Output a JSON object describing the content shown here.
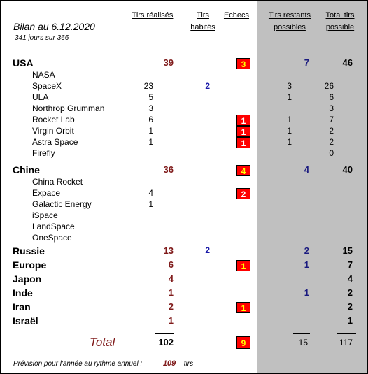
{
  "title": "Bilan au 6.12.2020",
  "subtitle": "341  jours sur 366",
  "headers": {
    "tirs_realises": "Tirs réalisés",
    "tirs_habites_1": "Tirs",
    "tirs_habites_2": "habités",
    "echecs": "Echecs",
    "tirs_restants_1": "Tirs restants",
    "tirs_restants_2": "possibles",
    "total_1": "Total tirs",
    "total_2": "possible"
  },
  "usa": {
    "name": "USA",
    "tirs": "39",
    "echecs": "3",
    "restants": "7",
    "total": "46",
    "companies": [
      {
        "name": "NASA",
        "tirs": "",
        "hab": "",
        "echecs": "",
        "rest": "",
        "total": ""
      },
      {
        "name": "SpaceX",
        "tirs": "23",
        "hab": "2",
        "echecs": "",
        "rest": "3",
        "total": "26"
      },
      {
        "name": "ULA",
        "tirs": "5",
        "hab": "",
        "echecs": "",
        "rest": "1",
        "total": "6"
      },
      {
        "name": "Northrop Grumman",
        "tirs": "3",
        "hab": "",
        "echecs": "",
        "rest": "",
        "total": "3"
      },
      {
        "name": "Rocket Lab",
        "tirs": "6",
        "hab": "",
        "echecs": "1",
        "rest": "1",
        "total": "7"
      },
      {
        "name": "Virgin Orbit",
        "tirs": "1",
        "hab": "",
        "echecs": "1",
        "rest": "1",
        "total": "2"
      },
      {
        "name": "Astra Space",
        "tirs": "1",
        "hab": "",
        "echecs": "1",
        "rest": "1",
        "total": "2"
      },
      {
        "name": "Firefly",
        "tirs": "",
        "hab": "",
        "echecs": "",
        "rest": "",
        "total": "0"
      }
    ]
  },
  "chine": {
    "name": "Chine",
    "tirs": "36",
    "echecs": "4",
    "restants": "4",
    "total": "40",
    "companies": [
      {
        "name": "China Rocket",
        "tirs": "",
        "echecs": ""
      },
      {
        "name": "Expace",
        "tirs": "4",
        "echecs": "2"
      },
      {
        "name": "Galactic Energy",
        "tirs": "1",
        "echecs": ""
      },
      {
        "name": "iSpace",
        "tirs": "",
        "echecs": ""
      },
      {
        "name": "LandSpace",
        "tirs": "",
        "echecs": ""
      },
      {
        "name": "OneSpace",
        "tirs": "",
        "echecs": ""
      }
    ]
  },
  "others": [
    {
      "name": "Russie",
      "tirs": "13",
      "hab": "2",
      "echecs": "",
      "rest": "2",
      "total": "15"
    },
    {
      "name": "Europe",
      "tirs": "6",
      "hab": "",
      "echecs": "1",
      "rest": "1",
      "total": "7"
    },
    {
      "name": "Japon",
      "tirs": "4",
      "hab": "",
      "echecs": "",
      "rest": "",
      "total": "4"
    },
    {
      "name": "Inde",
      "tirs": "1",
      "hab": "",
      "echecs": "",
      "rest": "1",
      "total": "2"
    },
    {
      "name": "Iran",
      "tirs": "2",
      "hab": "",
      "echecs": "1",
      "rest": "",
      "total": "2"
    },
    {
      "name": "Israël",
      "tirs": "1",
      "hab": "",
      "echecs": "",
      "rest": "",
      "total": "1"
    }
  ],
  "total": {
    "label": "Total",
    "tirs": "102",
    "echecs": "9",
    "rest": "15",
    "total": "117"
  },
  "footer": {
    "text": "Prévision pour l'année au rythme annuel :",
    "value": "109",
    "unit": "tirs"
  }
}
